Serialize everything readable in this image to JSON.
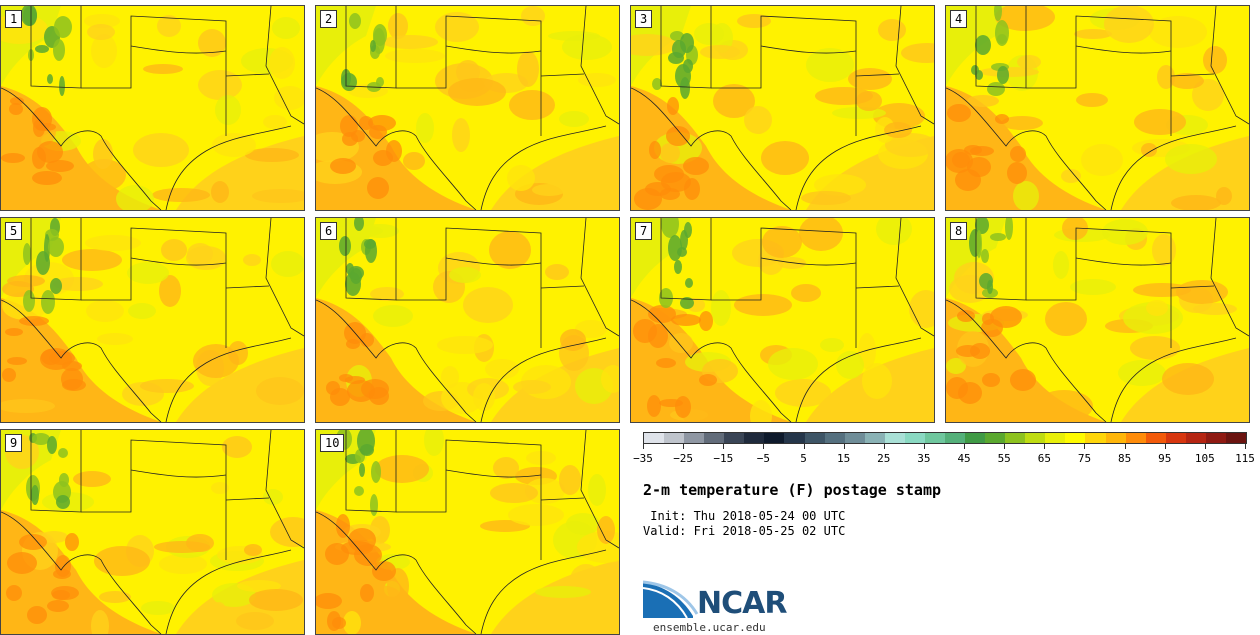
{
  "members": [
    "1",
    "2",
    "3",
    "4",
    "5",
    "6",
    "7",
    "8",
    "9",
    "10"
  ],
  "colorbar": {
    "colors": [
      "#dfe3ea",
      "#bfc4cc",
      "#8f97a3",
      "#626c7a",
      "#3a4556",
      "#1f2a3c",
      "#0e1a2c",
      "#25364a",
      "#3e5566",
      "#55707f",
      "#6f8d98",
      "#8ab2b5",
      "#a9e0d6",
      "#8ad9c2",
      "#6fc79e",
      "#54b07a",
      "#3f9a45",
      "#5aa82f",
      "#8dc21f",
      "#bfdc12",
      "#e8ef0a",
      "#fffb00",
      "#ffd60a",
      "#ffb60a",
      "#ff8c0a",
      "#f25a0a",
      "#d7360f",
      "#b52512",
      "#8f1a12",
      "#6b1410"
    ],
    "ticks": [
      "−35",
      "−25",
      "−15",
      "−5",
      "5",
      "15",
      "25",
      "35",
      "45",
      "55",
      "65",
      "75",
      "85",
      "95",
      "105",
      "115"
    ]
  },
  "title": "2-m temperature (F) postage stamp",
  "init": " Init: Thu 2018-05-24 00 UTC",
  "valid": "Valid: Fri 2018-05-25 02 UTC",
  "logo_text": "NCAR",
  "url": "ensemble.ucar.edu"
}
